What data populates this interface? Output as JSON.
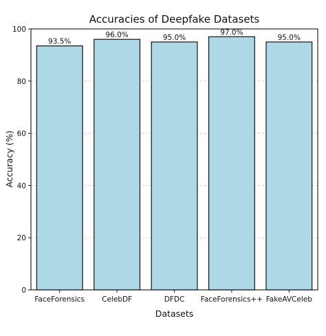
{
  "chart_data": {
    "type": "bar",
    "title": "Accuracies of Deepfake Datasets",
    "xlabel": "Datasets",
    "ylabel": "Accuracy (%)",
    "categories": [
      "FaceForensics",
      "CelebDF",
      "DFDC",
      "FaceForensics++",
      "FakeAVCeleb"
    ],
    "values": [
      93.5,
      96.0,
      95.0,
      97.0,
      95.0
    ],
    "data_labels": [
      "93.5%",
      "96.0%",
      "95.0%",
      "97.0%",
      "95.0%"
    ],
    "ylim": [
      0,
      100
    ],
    "yticks": [
      0,
      20,
      40,
      60,
      80,
      100
    ],
    "grid": "y-dashed",
    "colors": {
      "bar_fill": "#add8e6",
      "bar_edge": "#111111"
    }
  }
}
